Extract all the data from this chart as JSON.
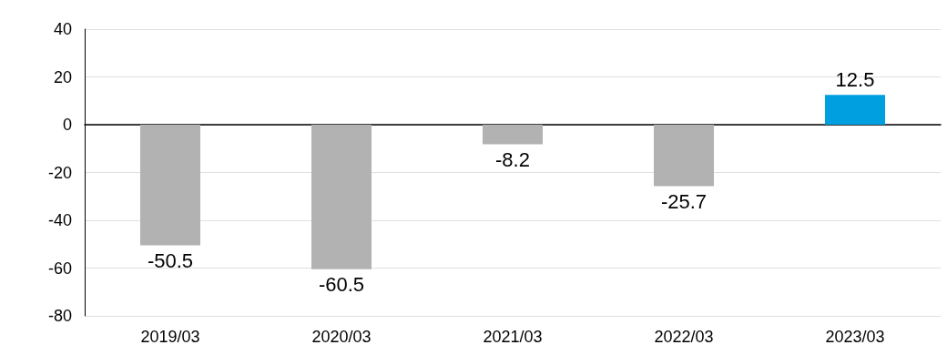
{
  "chart_data": {
    "type": "bar",
    "categories": [
      "2019/03",
      "2020/03",
      "2021/03",
      "2022/03",
      "2023/03"
    ],
    "values": [
      -50.5,
      -60.5,
      -8.2,
      -25.7,
      12.5
    ],
    "colors": [
      "#b2b2b2",
      "#b2b2b2",
      "#b2b2b2",
      "#b2b2b2",
      "#009fdf"
    ],
    "ylim": [
      -80,
      40
    ],
    "yticks": [
      -80,
      -60,
      -40,
      -20,
      0,
      20,
      40
    ],
    "grid": "y",
    "data_labels": true
  }
}
